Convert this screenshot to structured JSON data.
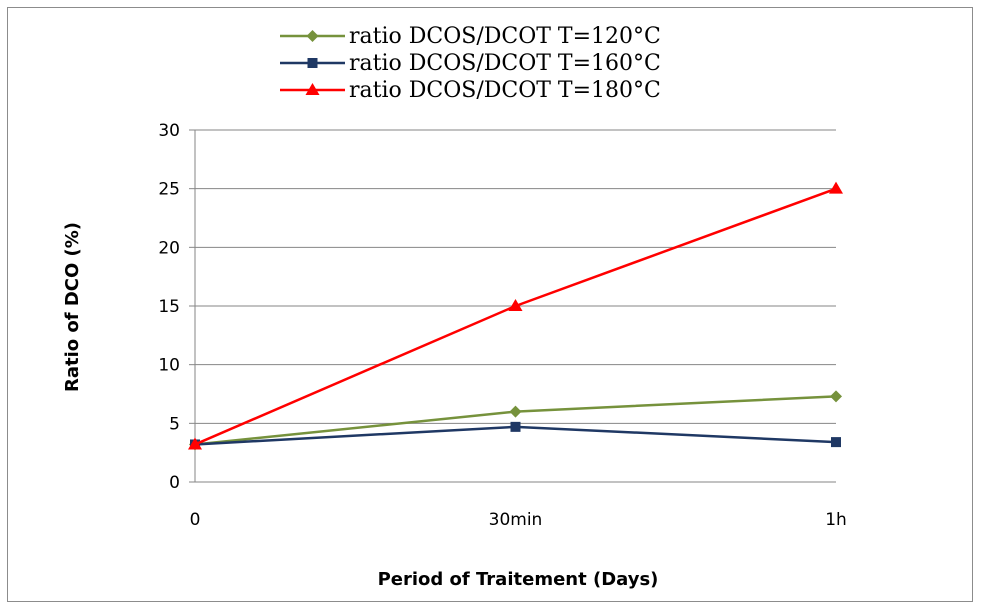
{
  "chart_data": {
    "type": "line",
    "categories": [
      "0",
      "30min",
      "1h"
    ],
    "series": [
      {
        "name": "ratio DCOS/DCOT T=120°C",
        "values": [
          3.2,
          6.0,
          7.3
        ],
        "color": "#76923c",
        "marker": "diamond"
      },
      {
        "name": "ratio DCOS/DCOT T=160°C",
        "values": [
          3.2,
          4.7,
          3.4
        ],
        "color": "#1f3864",
        "marker": "square"
      },
      {
        "name": "ratio DCOS/DCOT T=180°C",
        "values": [
          3.2,
          15.0,
          25.0
        ],
        "color": "#ff0000",
        "marker": "triangle"
      }
    ],
    "xlabel": "Period of Traitement (Days)",
    "ylabel": "Ratio of DCO (%)",
    "ylim": [
      0,
      30
    ],
    "yticks": [
      "0",
      "5",
      "10",
      "15",
      "20",
      "25",
      "30"
    ],
    "grid": true,
    "legend_position": "top"
  }
}
